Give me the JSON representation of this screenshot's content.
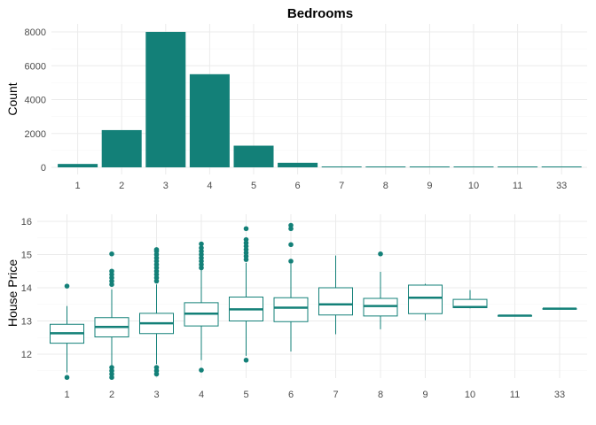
{
  "chart_data": [
    {
      "type": "bar",
      "title": "Bedrooms",
      "xlabel": "",
      "ylabel": "Count",
      "categories": [
        "1",
        "2",
        "3",
        "4",
        "5",
        "6",
        "7",
        "8",
        "9",
        "10",
        "11",
        "33"
      ],
      "values": [
        200,
        2200,
        8000,
        5500,
        1280,
        270,
        38,
        13,
        6,
        3,
        1,
        1
      ],
      "ylim": [
        0,
        8000
      ],
      "yticks": [
        0,
        2000,
        4000,
        6000,
        8000
      ],
      "color": "#138078",
      "grid": true,
      "legend": "none"
    },
    {
      "type": "box",
      "title": "",
      "xlabel": "",
      "ylabel": "House Price",
      "categories": [
        "1",
        "2",
        "3",
        "4",
        "5",
        "6",
        "7",
        "8",
        "9",
        "10",
        "11",
        "33"
      ],
      "ylim": [
        11.45,
        16.1
      ],
      "yticks": [
        12,
        13,
        14,
        15,
        16
      ],
      "color": "#138078",
      "grid": true,
      "legend": "none",
      "boxes": [
        {
          "category": "1",
          "min": 11.45,
          "q1": 12.33,
          "median": 12.63,
          "q3": 12.9,
          "max": 13.45,
          "outliers": [
            14.05,
            11.3
          ]
        },
        {
          "category": "2",
          "min": 11.65,
          "q1": 12.52,
          "median": 12.82,
          "q3": 13.1,
          "max": 13.95,
          "outliers": [
            15.02,
            14.5,
            14.4,
            14.3,
            14.2,
            14.1,
            11.6,
            11.5,
            11.4,
            11.3
          ]
        },
        {
          "category": "3",
          "min": 11.7,
          "q1": 12.62,
          "median": 12.93,
          "q3": 13.23,
          "max": 14.1,
          "outliers": [
            15.15,
            15.1,
            15.0,
            14.9,
            14.8,
            14.7,
            14.6,
            14.5,
            14.4,
            14.3,
            14.2,
            11.6,
            11.5,
            11.4
          ]
        },
        {
          "category": "4",
          "min": 11.82,
          "q1": 12.85,
          "median": 13.22,
          "q3": 13.55,
          "max": 14.55,
          "outliers": [
            15.32,
            15.2,
            15.1,
            15.0,
            14.9,
            14.8,
            14.7,
            14.6,
            11.52
          ]
        },
        {
          "category": "5",
          "min": 11.95,
          "q1": 13.0,
          "median": 13.35,
          "q3": 13.72,
          "max": 14.75,
          "outliers": [
            15.78,
            15.45,
            15.35,
            15.25,
            15.15,
            15.05,
            14.95,
            14.85,
            11.82
          ]
        },
        {
          "category": "6",
          "min": 12.08,
          "q1": 12.98,
          "median": 13.4,
          "q3": 13.7,
          "max": 14.72,
          "outliers": [
            15.88,
            15.78,
            15.3,
            14.8
          ]
        },
        {
          "category": "7",
          "min": 12.6,
          "q1": 13.18,
          "median": 13.5,
          "q3": 14.0,
          "max": 14.97,
          "outliers": []
        },
        {
          "category": "8",
          "min": 12.75,
          "q1": 13.15,
          "median": 13.45,
          "q3": 13.68,
          "max": 14.48,
          "outliers": [
            15.02
          ]
        },
        {
          "category": "9",
          "min": 13.02,
          "q1": 13.22,
          "median": 13.7,
          "q3": 14.08,
          "max": 14.12,
          "outliers": []
        },
        {
          "category": "10",
          "min": 13.38,
          "q1": 13.4,
          "median": 13.42,
          "q3": 13.65,
          "max": 13.93,
          "outliers": []
        },
        {
          "category": "11",
          "min": 13.16,
          "q1": 13.16,
          "median": 13.16,
          "q3": 13.16,
          "max": 13.16,
          "outliers": []
        },
        {
          "category": "33",
          "min": 13.37,
          "q1": 13.37,
          "median": 13.37,
          "q3": 13.37,
          "max": 13.37,
          "outliers": []
        }
      ]
    }
  ]
}
